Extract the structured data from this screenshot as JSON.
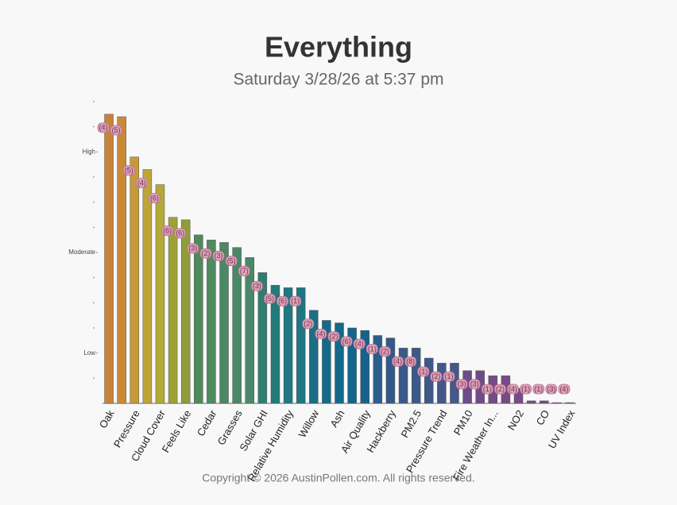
{
  "chart_data": {
    "type": "bar",
    "title": "Everything",
    "subtitle": "Saturday 3/28/26 at 5:37 pm",
    "footer": "Copyright © 2026 AustinPollen.com.  All rights reserved.",
    "categories": [
      "Oak",
      null,
      "Pressure",
      null,
      "Cloud Cover",
      null,
      "Feels Like",
      null,
      "Cedar",
      null,
      "Grasses",
      null,
      "Solar GHI",
      null,
      "Relative Humidity",
      null,
      "Willow",
      null,
      "Ash",
      null,
      "Air Quality",
      null,
      "Hackberry",
      null,
      "PM2.5",
      null,
      "Pressure Trend",
      null,
      "PM10",
      null,
      "Fire Weather In...",
      null,
      "NO2",
      null,
      "CO",
      null,
      "UV Index"
    ],
    "values": [
      11.5,
      11.4,
      9.8,
      9.3,
      8.7,
      7.4,
      7.3,
      6.7,
      6.5,
      6.4,
      6.2,
      5.8,
      5.2,
      4.7,
      4.6,
      4.6,
      3.7,
      3.3,
      3.2,
      3.0,
      2.9,
      2.7,
      2.6,
      2.2,
      2.2,
      1.8,
      1.6,
      1.6,
      1.3,
      1.3,
      1.1,
      1.1,
      0.6,
      0.1,
      0.1,
      0.03,
      0.03
    ],
    "badges": [
      "(4)",
      "(5)",
      "(5)",
      "(4)",
      "(6)",
      "(6)",
      "(6)",
      "(3)",
      "(2)",
      "(3)",
      "(5)",
      "(7)",
      "(3)",
      "(5)",
      "(6)",
      "(1)",
      "(2)",
      "(4)",
      "(2)",
      "(6)",
      "(4)",
      "(1)",
      "(2)",
      "(4)",
      "(8)",
      "(1)",
      "(2)",
      "(1)",
      "(3)",
      "(3)",
      "(1)",
      "(2)",
      "(4)",
      "(1)",
      "(1)",
      "(3)",
      "(4)"
    ],
    "colors": [
      "#c8823a",
      "#c98a38",
      "#c69a38",
      "#bfa538",
      "#b4a838",
      "#9ea236",
      "#8f9c3a",
      "#4e8a5a",
      "#4f8a60",
      "#4c8864",
      "#4a8966",
      "#4a8868",
      "#2f7e70",
      "#237a78",
      "#207880",
      "#1f7682",
      "#1a6f86",
      "#156a8a",
      "#13688c",
      "#12668c",
      "#17628c",
      "#2a5e8c",
      "#33598a",
      "#3a5a88",
      "#3c5a88",
      "#3f5888",
      "#45578a",
      "#46578a",
      "#6d4b88",
      "#704b88",
      "#744a88",
      "#784a88",
      "#7a4a86",
      "#7a4a86",
      "#7a4a86",
      "#7a4a86",
      "#7a4a86"
    ],
    "ylim": [
      0,
      12
    ],
    "yticks": [
      {
        "value": 2,
        "label": "Low"
      },
      {
        "value": 6,
        "label": "Moderate"
      },
      {
        "value": 10,
        "label": "High"
      }
    ],
    "minor_yticks": [
      1,
      3,
      4,
      5,
      7,
      8,
      9,
      11,
      12
    ],
    "grid": false
  }
}
